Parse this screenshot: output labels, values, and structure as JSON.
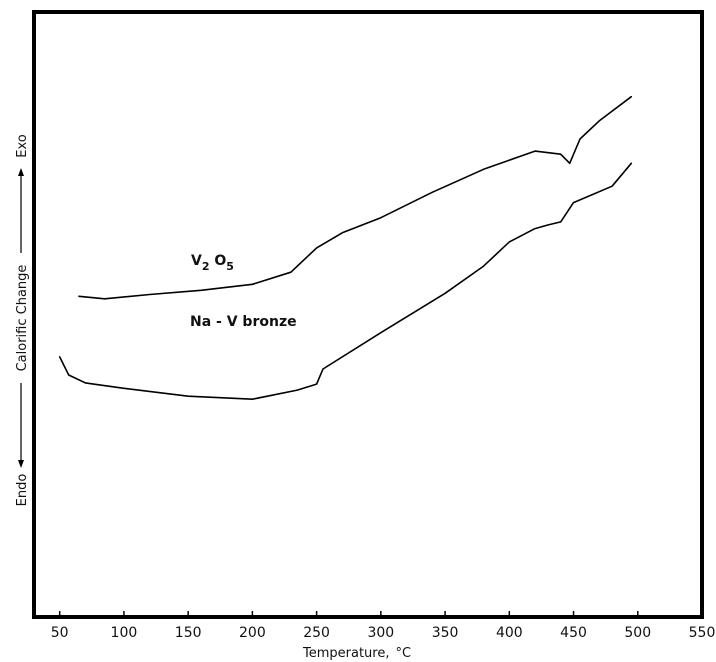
{
  "chart_data": {
    "type": "line",
    "xlabel": "Temperature,",
    "xlabel_unit": "°C",
    "ylabel_parts": [
      "Endo",
      "Calorific Change",
      "Exo"
    ],
    "x_ticks": [
      "50",
      "100",
      "150",
      "200",
      "250",
      "300",
      "350",
      "400",
      "450",
      "500",
      "550"
    ],
    "xlim": [
      30,
      550
    ],
    "ylim": [
      0,
      100
    ],
    "y_tick_labels": "none",
    "grid": false,
    "series": [
      {
        "label_main": "V",
        "label_sub1": "2",
        "label_mid": " O",
        "label_sub2": "5",
        "x": [
          65,
          85,
          120,
          160,
          200,
          230,
          250,
          270,
          300,
          340,
          380,
          420,
          440,
          447,
          455,
          470,
          495
        ],
        "y": [
          53,
          52.6,
          53.3,
          54,
          55,
          57,
          61,
          63.5,
          66,
          70.2,
          74,
          77,
          76.5,
          75,
          79,
          82,
          86
        ]
      },
      {
        "name": "Na - V bronze",
        "x": [
          50,
          57,
          70,
          100,
          150,
          200,
          235,
          250,
          255,
          300,
          350,
          380,
          400,
          420,
          430,
          440,
          450,
          480,
          495
        ],
        "y": [
          43,
          40,
          38.7,
          37.8,
          36.5,
          36,
          37.5,
          38.5,
          41,
          47,
          53.5,
          58,
          62,
          64.2,
          64.8,
          65.3,
          68.5,
          71.2,
          75
        ]
      }
    ]
  }
}
